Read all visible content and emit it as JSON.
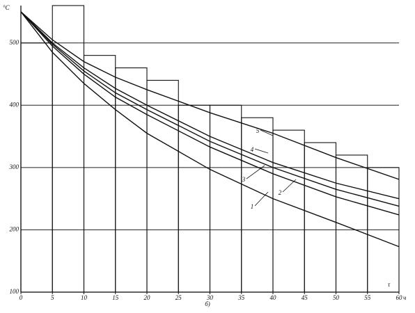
{
  "chart_data": {
    "type": "line",
    "y_label": "°C",
    "x_label": "τ",
    "x_unit": "ч",
    "caption": "б)",
    "xlim": [
      0,
      60
    ],
    "ylim": [
      100,
      560
    ],
    "xticks": [
      0,
      5,
      10,
      15,
      20,
      25,
      30,
      35,
      40,
      45,
      50,
      55,
      60
    ],
    "yticks": [
      100,
      200,
      300,
      400,
      500
    ],
    "grid": true,
    "steps": {
      "bins": [
        0,
        5,
        10,
        15,
        20,
        25,
        30,
        35,
        40,
        45,
        50,
        55,
        60
      ],
      "values": [
        500,
        560,
        480,
        460,
        440,
        400,
        400,
        380,
        360,
        340,
        320,
        300
      ]
    },
    "x": [
      0,
      5,
      10,
      15,
      20,
      30,
      40,
      50,
      60
    ],
    "series": [
      {
        "name": "1",
        "color": "#111",
        "values": [
          550,
          485,
          435,
          393,
          355,
          297,
          250,
          212,
          173
        ]
      },
      {
        "name": "2",
        "color": "#111",
        "values": [
          550,
          495,
          450,
          413,
          385,
          333,
          290,
          253,
          224
        ]
      },
      {
        "name": "3",
        "color": "#111",
        "values": [
          550,
          498,
          455,
          420,
          393,
          342,
          300,
          265,
          238
        ]
      },
      {
        "name": "4",
        "color": "#111",
        "values": [
          550,
          500,
          460,
          427,
          400,
          350,
          308,
          275,
          250
        ]
      },
      {
        "name": "5",
        "color": "#111",
        "values": [
          550,
          505,
          470,
          445,
          425,
          388,
          355,
          316,
          281
        ]
      }
    ]
  }
}
